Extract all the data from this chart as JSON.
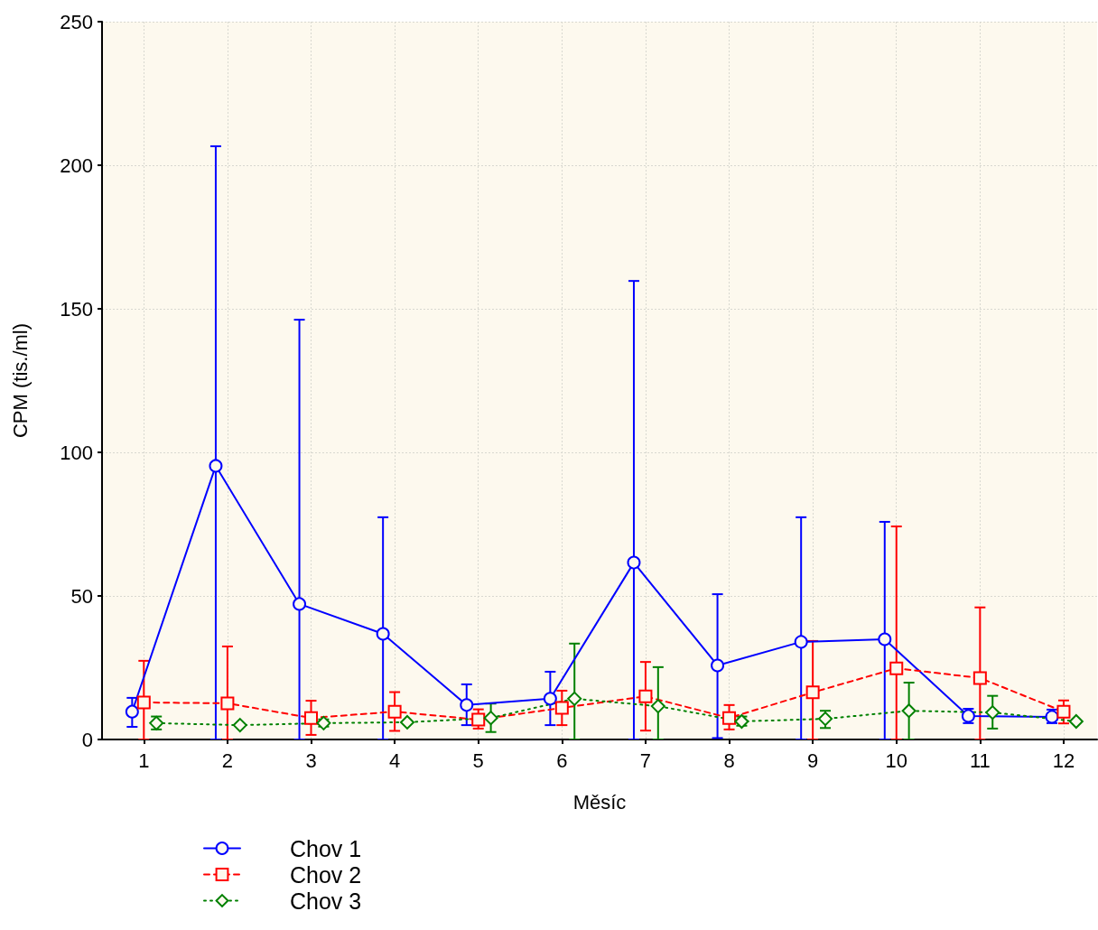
{
  "chart_data": {
    "type": "line",
    "xlabel": "Měsíc",
    "ylabel": "CPM (tis./ml)",
    "xlim": [
      0.5,
      12.4
    ],
    "xticks": [
      1,
      2,
      3,
      4,
      5,
      6,
      7,
      8,
      9,
      10,
      11,
      12
    ],
    "ylim": [
      0,
      250
    ],
    "yticks": [
      0,
      50,
      100,
      150,
      200,
      250
    ],
    "grid": true,
    "legend": "bottom left",
    "series": [
      {
        "name": "Chov 1",
        "color": "#0000ff",
        "marker": "circle",
        "line_style": "solid",
        "x": [
          0.86,
          1.86,
          2.86,
          3.86,
          4.86,
          5.86,
          6.86,
          7.86,
          8.86,
          9.86,
          10.86,
          11.86
        ],
        "values": [
          9.7,
          95.3,
          47.2,
          36.8,
          12,
          14.2,
          61.6,
          25.8,
          34,
          34.9,
          8.2,
          7.9
        ],
        "errors": [
          [
            4.4,
            14.5
          ],
          [
            0,
            206.6
          ],
          [
            0,
            146.2
          ],
          [
            0,
            77.4
          ],
          [
            5,
            19.2
          ],
          [
            5,
            23.6
          ],
          [
            0,
            159.7
          ],
          [
            0.5,
            50.6
          ],
          [
            0,
            77.4
          ],
          [
            0,
            75.8
          ],
          [
            5.7,
            10.7
          ],
          [
            5.7,
            10.4
          ]
        ]
      },
      {
        "name": "Chov 2",
        "color": "#ff0000",
        "marker": "square",
        "line_style": "dashed",
        "x": [
          1,
          2,
          3,
          4,
          5,
          6,
          7,
          8,
          9,
          10,
          11,
          12
        ],
        "values": [
          12.9,
          12.6,
          7.5,
          9.7,
          6.9,
          11,
          15,
          7.5,
          16.4,
          24.8,
          21.4,
          9.7
        ],
        "errors": [
          [
            0,
            27.4
          ],
          [
            0,
            32.4
          ],
          [
            1.6,
            13.5
          ],
          [
            3,
            16.5
          ],
          [
            3.8,
            10.5
          ],
          [
            5,
            17
          ],
          [
            3.1,
            27
          ],
          [
            3.5,
            12
          ],
          [
            0,
            34.3
          ],
          [
            0,
            74.2
          ],
          [
            0,
            46
          ],
          [
            5.6,
            13.6
          ]
        ]
      },
      {
        "name": "Chov 3",
        "color": "#008000",
        "marker": "diamond",
        "line_style": "dotted",
        "x": [
          1.15,
          2.15,
          3.15,
          4.15,
          5.15,
          6.15,
          7.15,
          8.15,
          9.15,
          10.15,
          11.15,
          12.15
        ],
        "values": [
          5.7,
          5,
          5.7,
          6,
          7.5,
          14.2,
          11.6,
          6.3,
          7.2,
          10,
          9.4,
          6.3
        ],
        "errors": [
          [
            3.5,
            8
          ],
          null,
          [
            4.5,
            7
          ],
          null,
          [
            2.6,
            12.5
          ],
          [
            0,
            33.4
          ],
          [
            0,
            25.2
          ],
          [
            4.8,
            8
          ],
          [
            4,
            10
          ],
          [
            0,
            19.8
          ],
          [
            3.8,
            15.2
          ],
          null
        ]
      }
    ]
  }
}
